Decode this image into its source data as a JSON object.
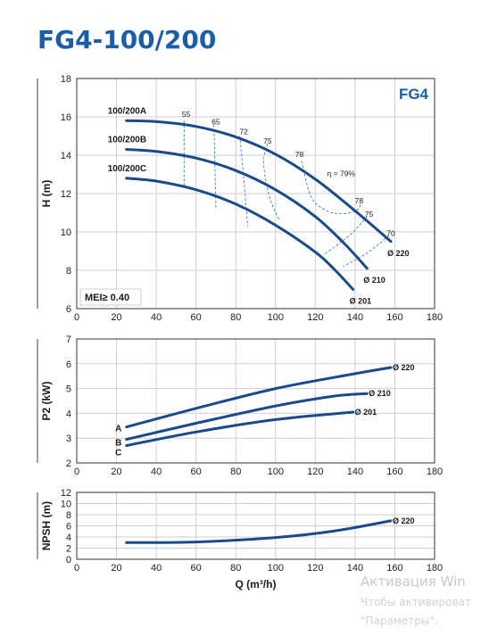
{
  "page": {
    "title": "FG4-100/200",
    "watermark": {
      "line1": "Активация Win",
      "line2": "Чтобы активироват",
      "line3": "\"Параметры\"."
    }
  },
  "colors": {
    "curve": "#1a4a8c",
    "title": "#1b5ea8",
    "grid": "#cfcfcf",
    "dashed": "#3b7fd4"
  },
  "chart_data": [
    {
      "id": "head",
      "type": "line",
      "title": "",
      "xlabel": "",
      "ylabel": "H (m)",
      "xlim": [
        0,
        180
      ],
      "ylim": [
        6,
        18
      ],
      "xticks": [
        0,
        20,
        40,
        60,
        80,
        100,
        120,
        140,
        160,
        180
      ],
      "yticks": [
        6,
        8,
        10,
        12,
        14,
        16,
        18
      ],
      "grid": true,
      "badge": "FG4",
      "annotation": "MEI≥ 0.40",
      "series": [
        {
          "name": "100/200A",
          "end_label": "Ø 220",
          "x": [
            25,
            40,
            60,
            80,
            100,
            120,
            140,
            158
          ],
          "y": [
            15.8,
            15.75,
            15.5,
            14.95,
            14.05,
            12.75,
            11.1,
            9.5
          ]
        },
        {
          "name": "100/200B",
          "end_label": "Ø 210",
          "x": [
            25,
            40,
            60,
            80,
            100,
            120,
            135,
            146
          ],
          "y": [
            14.3,
            14.2,
            13.85,
            13.2,
            12.2,
            10.8,
            9.35,
            8.1
          ]
        },
        {
          "name": "100/200C",
          "end_label": "Ø 201",
          "x": [
            25,
            40,
            60,
            80,
            100,
            120,
            130,
            139
          ],
          "y": [
            12.8,
            12.65,
            12.2,
            11.45,
            10.35,
            8.95,
            8.0,
            7.0
          ]
        }
      ],
      "efficiency_labels": [
        {
          "text": "55",
          "x": 55,
          "y": 16.0
        },
        {
          "text": "65",
          "x": 70,
          "y": 15.6
        },
        {
          "text": "72",
          "x": 84,
          "y": 15.1
        },
        {
          "text": "75",
          "x": 96,
          "y": 14.6
        },
        {
          "text": "78",
          "x": 112,
          "y": 13.9
        },
        {
          "text": "η = 79%",
          "x": 133,
          "y": 12.9
        },
        {
          "text": "78",
          "x": 142,
          "y": 11.5
        },
        {
          "text": "75",
          "x": 147,
          "y": 10.8
        },
        {
          "text": "70",
          "x": 158,
          "y": 9.8
        }
      ],
      "efficiency_lines": [
        {
          "x": [
            54,
            54
          ],
          "y": [
            15.8,
            12.4
          ]
        },
        {
          "x": [
            69,
            70
          ],
          "y": [
            15.6,
            11.2
          ]
        },
        {
          "x": [
            82,
            84,
            86
          ],
          "y": [
            15.0,
            12.8,
            10.3
          ]
        },
        {
          "x": [
            96,
            94,
            97,
            102
          ],
          "y": [
            14.6,
            13.6,
            11.8,
            10.6
          ]
        },
        {
          "x": [
            113,
            118,
            126,
            134,
            141,
            143
          ],
          "y": [
            13.7,
            11.8,
            11.1,
            10.95,
            11.15,
            11.5
          ]
        },
        {
          "x": [
            146,
            137,
            124
          ],
          "y": [
            10.8,
            9.8,
            8.8
          ]
        },
        {
          "x": [
            157,
            146,
            134
          ],
          "y": [
            9.8,
            8.9,
            8.2
          ]
        }
      ]
    },
    {
      "id": "power",
      "type": "line",
      "title": "",
      "xlabel": "",
      "ylabel": "P2 (kW)",
      "xlim": [
        0,
        180
      ],
      "ylim": [
        2,
        7
      ],
      "xticks": [
        0,
        20,
        40,
        60,
        80,
        100,
        120,
        140,
        160,
        180
      ],
      "yticks": [
        2,
        3,
        4,
        5,
        6,
        7
      ],
      "grid": true,
      "series": [
        {
          "name": "A",
          "end_label": "Ø 220",
          "x": [
            25,
            60,
            100,
            140,
            158
          ],
          "y": [
            3.45,
            4.2,
            5.0,
            5.6,
            5.85
          ]
        },
        {
          "name": "B",
          "end_label": "Ø 210",
          "x": [
            25,
            60,
            100,
            130,
            146
          ],
          "y": [
            2.95,
            3.6,
            4.3,
            4.7,
            4.8
          ]
        },
        {
          "name": "C",
          "end_label": "Ø 201",
          "x": [
            25,
            60,
            100,
            139
          ],
          "y": [
            2.7,
            3.25,
            3.75,
            4.05
          ]
        }
      ]
    },
    {
      "id": "npsh",
      "type": "line",
      "title": "",
      "xlabel": "Q (m³/h)",
      "ylabel": "NPSH (m)",
      "xlim": [
        0,
        180
      ],
      "ylim": [
        0,
        12
      ],
      "xticks": [
        0,
        20,
        40,
        60,
        80,
        100,
        120,
        140,
        160,
        180
      ],
      "yticks": [
        0,
        2,
        4,
        6,
        8,
        10,
        12
      ],
      "grid": true,
      "series": [
        {
          "name": "",
          "end_label": "Ø 220",
          "x": [
            25,
            60,
            100,
            130,
            158
          ],
          "y": [
            3.0,
            3.1,
            3.9,
            5.1,
            6.9
          ]
        }
      ]
    }
  ]
}
